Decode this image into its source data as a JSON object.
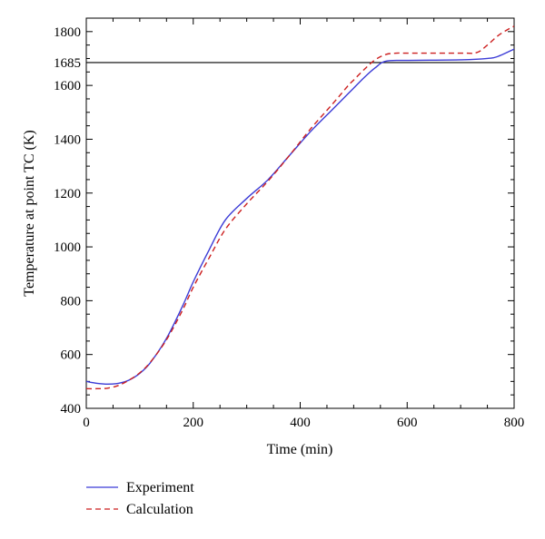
{
  "chart_data": {
    "type": "line",
    "title": "",
    "xlabel": "Time (min)",
    "ylabel": "Temperature at point TC (K)",
    "xlim": [
      0,
      800
    ],
    "ylim": [
      400,
      1850
    ],
    "x_ticks": [
      0,
      200,
      400,
      600,
      800
    ],
    "y_ticks": [
      400,
      600,
      800,
      1000,
      1200,
      1400,
      1600,
      1685,
      1800
    ],
    "reference_line": {
      "y": 1685,
      "label": "1685",
      "color": "#000000"
    },
    "grid": false,
    "legend_position": "bottom-left, below plot",
    "series": [
      {
        "name": "Experiment",
        "color": "#3b3bd6",
        "style": "solid",
        "x": [
          0,
          20,
          40,
          60,
          80,
          100,
          120,
          150,
          180,
          200,
          230,
          260,
          300,
          340,
          380,
          420,
          460,
          490,
          500,
          520,
          540,
          560,
          600,
          700,
          750,
          770,
          800
        ],
        "y": [
          500,
          493,
          490,
          493,
          505,
          530,
          570,
          660,
          780,
          870,
          990,
          1100,
          1180,
          1250,
          1340,
          1430,
          1510,
          1570,
          1590,
          1630,
          1665,
          1690,
          1693,
          1695,
          1700,
          1708,
          1735
        ]
      },
      {
        "name": "Calculation",
        "color": "#cc1f1f",
        "style": "dashed",
        "x": [
          0,
          20,
          40,
          60,
          80,
          100,
          120,
          150,
          180,
          200,
          230,
          260,
          300,
          340,
          380,
          420,
          460,
          490,
          500,
          520,
          540,
          560,
          580,
          600,
          700,
          730,
          750,
          770,
          790,
          800
        ],
        "y": [
          473,
          473,
          475,
          485,
          505,
          532,
          572,
          655,
          765,
          850,
          960,
          1065,
          1160,
          1245,
          1340,
          1440,
          1530,
          1600,
          1620,
          1660,
          1695,
          1715,
          1720,
          1720,
          1720,
          1722,
          1750,
          1785,
          1810,
          1820
        ]
      }
    ]
  }
}
